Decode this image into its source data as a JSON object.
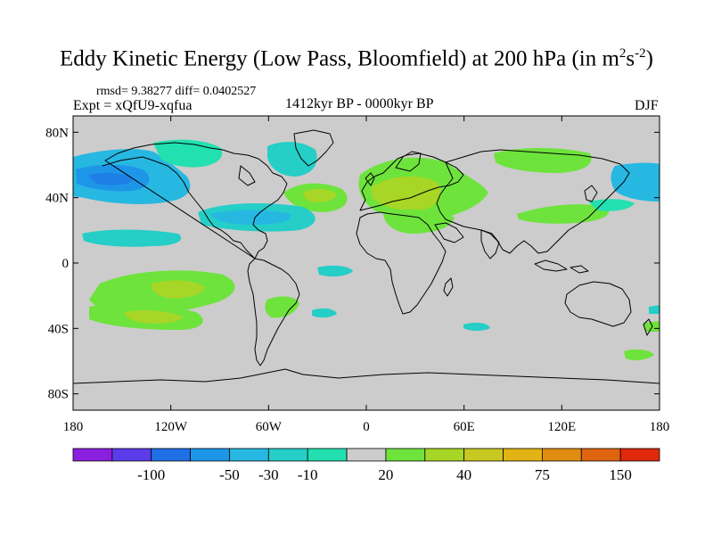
{
  "title": {
    "main": "Eddy Kinetic Energy (Low Pass, Bloomfield) at 200 hPa (in m",
    "sup1": "2",
    "mid": "s",
    "sup2": "-2",
    "close": ")"
  },
  "stats": {
    "rmsd_line": "rmsd= 9.38277 diff= 0.0402527"
  },
  "expt": "Expt = xQfU9-xqfua",
  "period": "1412kyr BP - 0000kyr BP",
  "season": "DJF",
  "axes": {
    "lat_labels": [
      "80N",
      "40N",
      "0",
      "40S",
      "80S"
    ],
    "lat_values": [
      80,
      40,
      0,
      -40,
      -80
    ],
    "lon_labels": [
      "180",
      "120W",
      "60W",
      "0",
      "60E",
      "120E",
      "180"
    ],
    "lon_values": [
      -180,
      -120,
      -60,
      0,
      60,
      120,
      180
    ],
    "lat_range": [
      -90,
      90
    ],
    "lon_range": [
      -180,
      180
    ]
  },
  "colorbar": {
    "colors": [
      "#8a1fe0",
      "#5a3cea",
      "#1f6fe6",
      "#1e96e8",
      "#27b8e2",
      "#25cec7",
      "#22e0b0",
      "#cccccc",
      "#6ee33c",
      "#a8d626",
      "#c8c823",
      "#e2b314",
      "#e08d12",
      "#de6410",
      "#e0290c"
    ],
    "labels": [
      "-100",
      "-50",
      "-30",
      "-10",
      "20",
      "40",
      "75",
      "150"
    ]
  },
  "colors": {
    "background": "#cccccc",
    "coast": "#000000"
  }
}
